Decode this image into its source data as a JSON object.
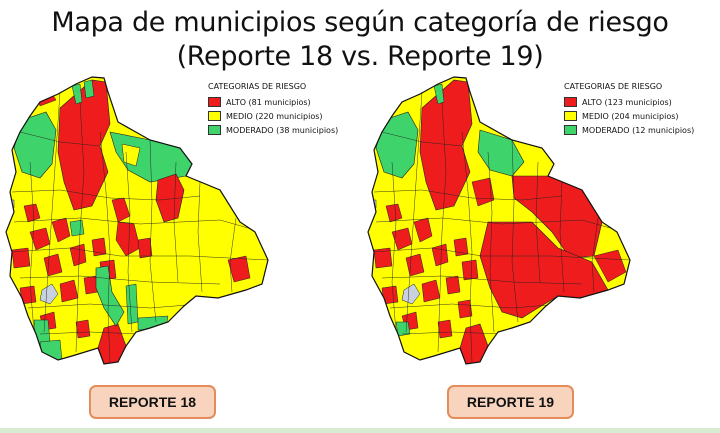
{
  "title": {
    "line1": "Mapa de municipios según categoría de riesgo",
    "line2": "(Reporte 18 vs. Reporte 19)"
  },
  "colors": {
    "alto": "#ee1c1c",
    "medio": "#ffff00",
    "moderado": "#3fd36b",
    "border": "#222222",
    "lake": "#c8d1e0",
    "button_bg": "#f8d4be",
    "button_border": "#e48c5a"
  },
  "maps": [
    {
      "legend_title": "CATEGORIAS DE RIESGO",
      "alto": "ALTO (81 municipios)",
      "medio": "MEDIO (220 municipios)",
      "moderado": "MODERADO (38 municipios)",
      "button": "REPORTE 18"
    },
    {
      "legend_title": "CATEGORIAS DE RIESGO",
      "alto": "ALTO (123 municipios)",
      "medio": "MEDIO (204 municipios)",
      "moderado": "MODERADO (12 municipios)",
      "button": "REPORTE 19"
    }
  ]
}
